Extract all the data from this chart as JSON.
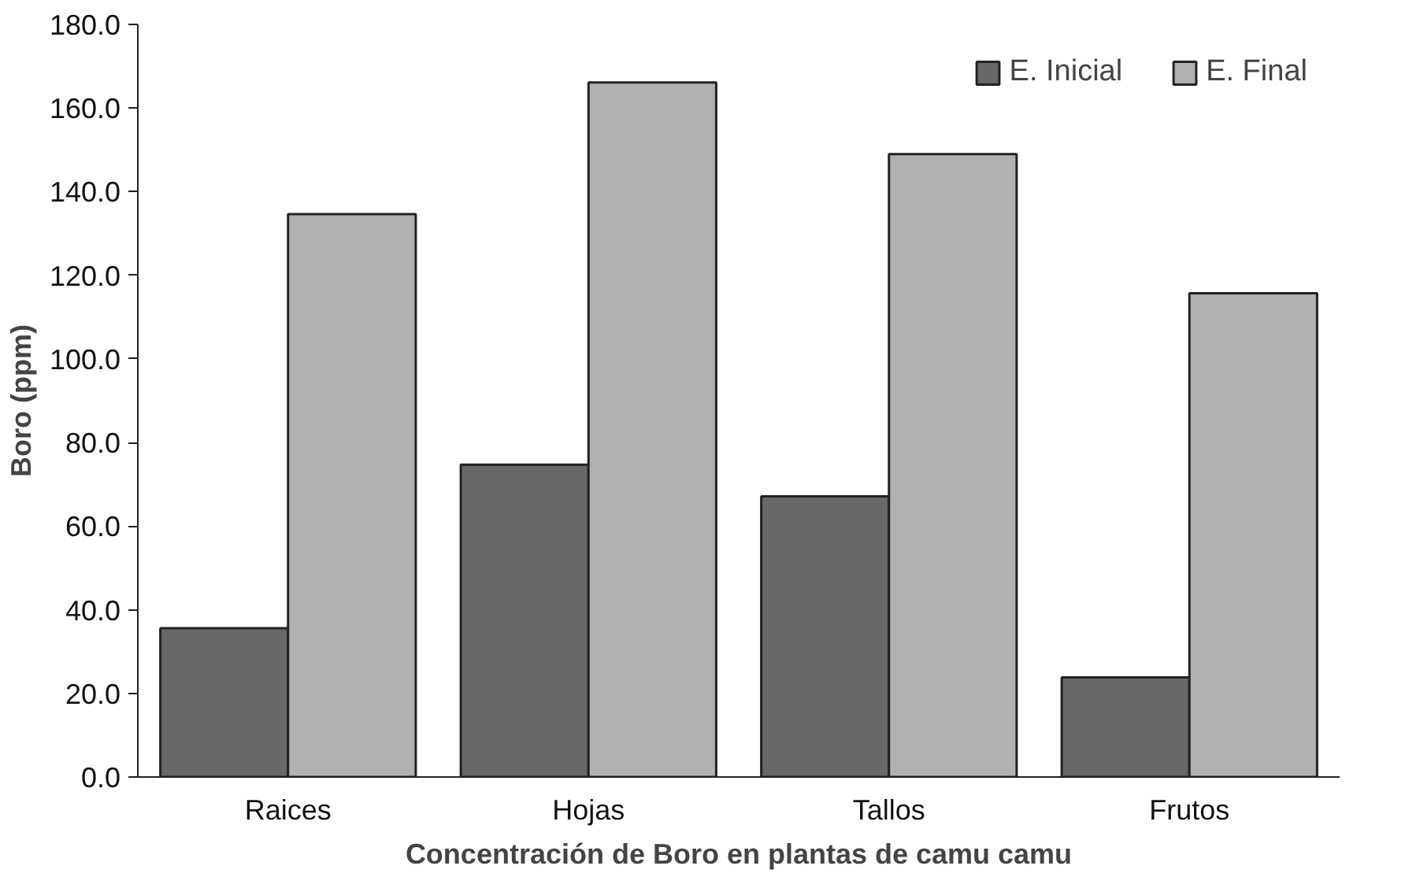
{
  "chart_data": {
    "type": "bar",
    "xlabel": "Concentración de Boro en plantas de camu camu",
    "ylabel": "Boro (ppm)",
    "categories": [
      "Raices",
      "Hojas",
      "Tallos",
      "Frutos"
    ],
    "series": [
      {
        "name": "E. Inicial",
        "color": "#686868",
        "values": [
          35.6,
          74.7,
          67.1,
          23.8
        ]
      },
      {
        "name": "E. Final",
        "color": "#b0b1b0",
        "values": [
          134.6,
          166.1,
          149.0,
          115.7
        ]
      }
    ],
    "ylim": [
      0,
      180
    ],
    "yticks": [
      {
        "value": 0,
        "label": "0.0"
      },
      {
        "value": 20,
        "label": "20.0"
      },
      {
        "value": 40,
        "label": "40.0"
      },
      {
        "value": 60,
        "label": "60.0"
      },
      {
        "value": 80,
        "label": "80.0"
      },
      {
        "value": 100,
        "label": "100.0"
      },
      {
        "value": 120,
        "label": "120.0"
      },
      {
        "value": 140,
        "label": "140.0"
      },
      {
        "value": 160,
        "label": "160.0"
      },
      {
        "value": 180,
        "label": "180.0"
      }
    ],
    "grid": false,
    "legend": "top right"
  }
}
